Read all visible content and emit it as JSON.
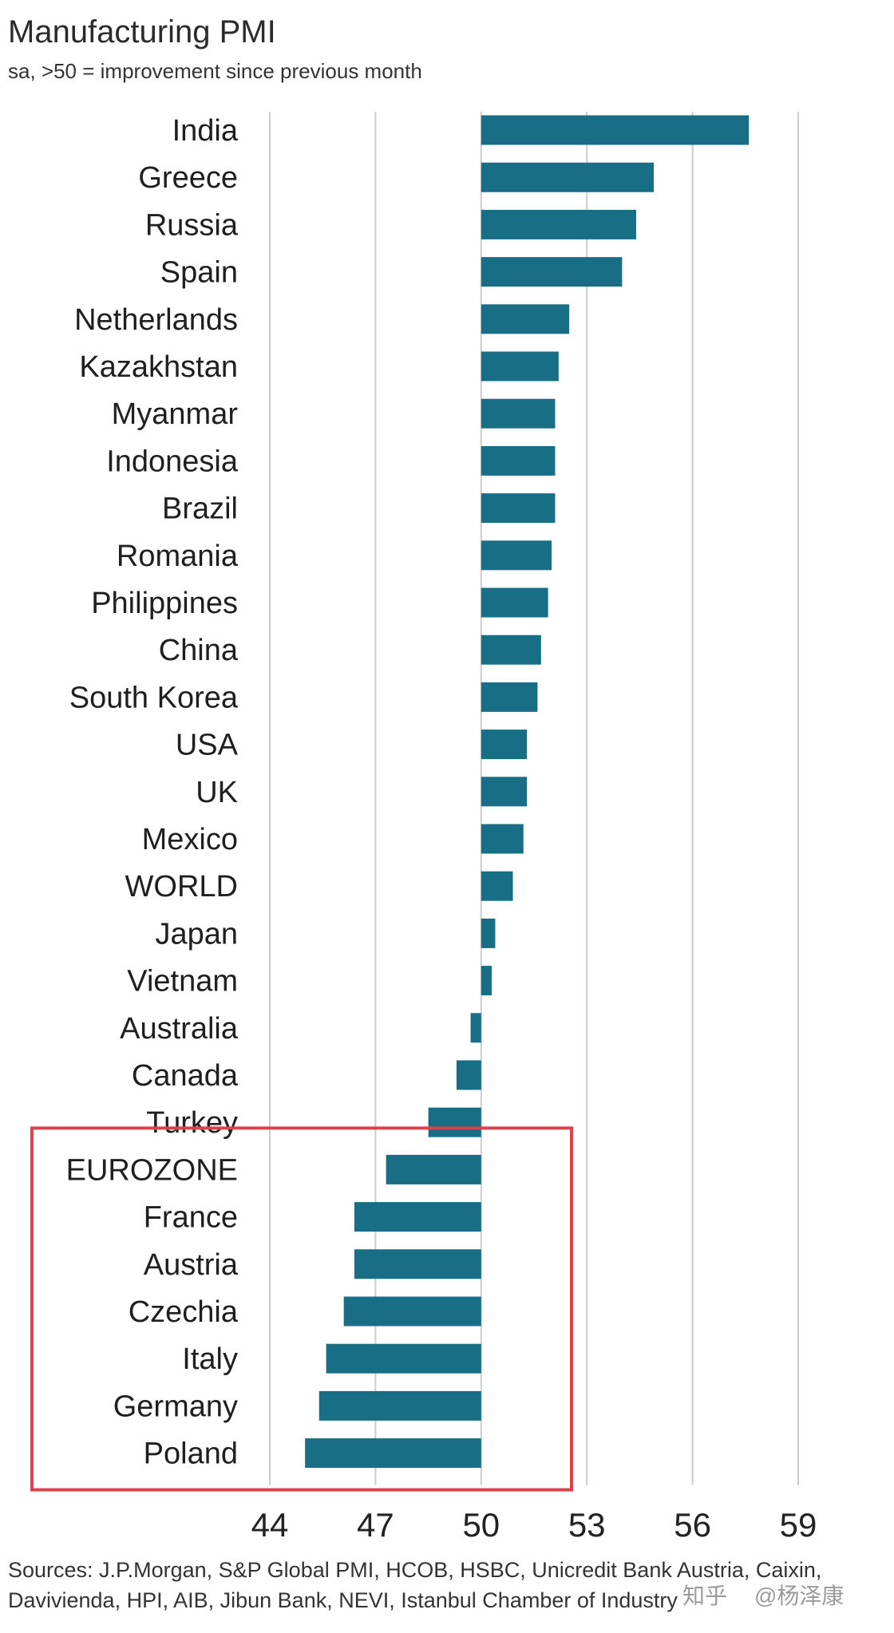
{
  "chart_data": {
    "type": "bar",
    "orientation": "horizontal",
    "title": "Manufacturing PMI",
    "subtitle": "sa, >50 = improvement since previous month",
    "baseline": 50,
    "xlim": [
      44,
      59
    ],
    "xticks": [
      "44",
      "47",
      "50",
      "53",
      "56",
      "59"
    ],
    "grid": true,
    "categories": [
      "India",
      "Greece",
      "Russia",
      "Spain",
      "Netherlands",
      "Kazakhstan",
      "Myanmar",
      "Indonesia",
      "Brazil",
      "Romania",
      "Philippines",
      "China",
      "South Korea",
      "USA",
      "UK",
      "Mexico",
      "WORLD",
      "Japan",
      "Vietnam",
      "Australia",
      "Canada",
      "Turkey",
      "EUROZONE",
      "France",
      "Austria",
      "Czechia",
      "Italy",
      "Germany",
      "Poland"
    ],
    "values": [
      57.6,
      54.9,
      54.4,
      54.0,
      52.5,
      52.2,
      52.1,
      52.1,
      52.1,
      52.0,
      51.9,
      51.7,
      51.6,
      51.3,
      51.3,
      51.2,
      50.9,
      50.4,
      50.3,
      49.7,
      49.3,
      48.5,
      47.3,
      46.4,
      46.4,
      46.1,
      45.6,
      45.4,
      45.0
    ],
    "highlight_group": [
      "EUROZONE",
      "France",
      "Austria",
      "Czechia",
      "Italy",
      "Germany",
      "Poland"
    ]
  },
  "colors": {
    "bar": "#176e85",
    "grid": "#cccccc",
    "highlight": "#d9434b"
  },
  "sources": "Sources: J.P.Morgan, S&P Global PMI, HCOB, HSBC, Unicredit Bank Austria, Caixin, Davivienda, HPI, AIB, Jibun Bank, NEVI, Istanbul Chamber of Industry",
  "watermark": {
    "platform": "知乎",
    "author": "@杨泽康"
  }
}
